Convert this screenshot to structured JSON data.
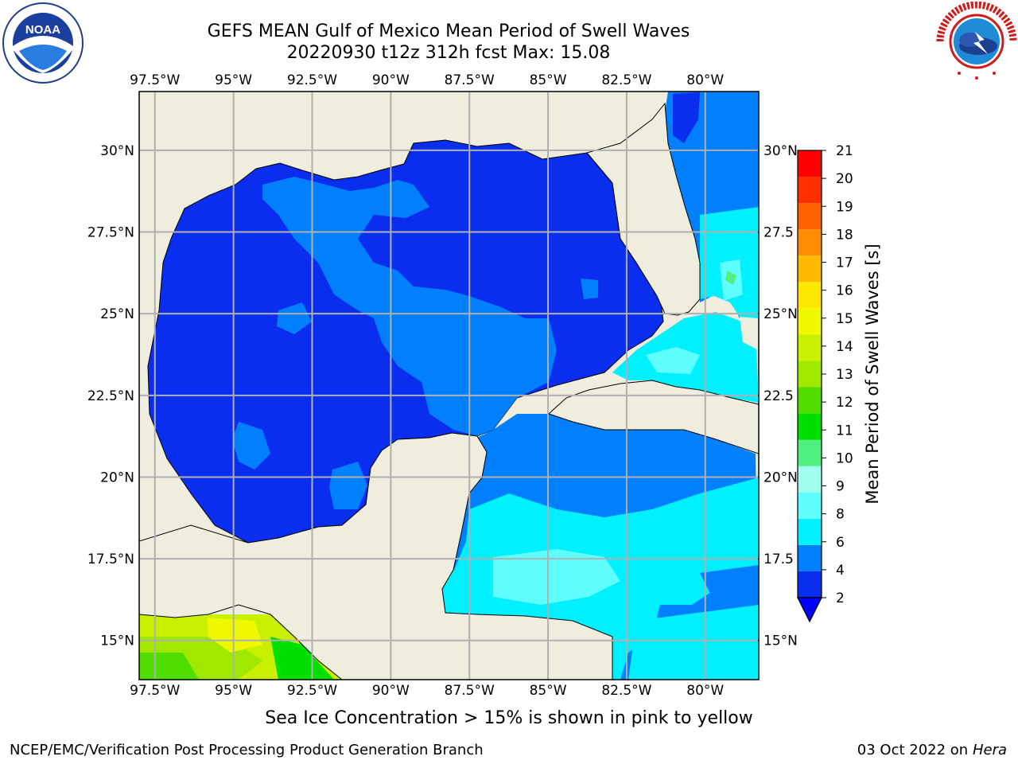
{
  "title": {
    "line1": "GEFS MEAN Gulf of Mexico Mean Period of Swell Waves",
    "line2": "20220930 t12z 312h fcst   Max: 15.08"
  },
  "logos": {
    "left": {
      "icon": "noaa-logo-icon",
      "text": "NOAA"
    },
    "right": {
      "icon": "nws-logo-icon",
      "text": "NATIONAL WEATHER SERVICE"
    }
  },
  "map": {
    "lon_labels": [
      "97.5°W",
      "95°W",
      "92.5°W",
      "90°W",
      "87.5°W",
      "85°W",
      "82.5°W",
      "80°W"
    ],
    "lat_labels_left": [
      "30°N",
      "27.5°N",
      "25°N",
      "22.5°N",
      "20°N",
      "17.5°N",
      "15°N"
    ],
    "lat_labels_right": [
      "30°N",
      "27.5",
      "25°N",
      "22.5",
      "20°N",
      "17.5",
      "15°N"
    ],
    "extent": {
      "lon": [
        -98.0,
        -78.3
      ],
      "lat": [
        13.8,
        31.8
      ]
    },
    "land_color": "#efedde",
    "grid_color": "#b0b0b0"
  },
  "colorbar": {
    "label": "Mean Period of Swell Waves [s]",
    "ticks": [
      "2",
      "4",
      "6",
      "8",
      "9",
      "10",
      "11",
      "12",
      "13",
      "14",
      "15",
      "16",
      "17",
      "18",
      "19",
      "20",
      "21"
    ],
    "colors": [
      "#0a2ef0",
      "#0080ff",
      "#00f0ff",
      "#60ffff",
      "#a0fff0",
      "#50f080",
      "#00e000",
      "#50dd00",
      "#a0e800",
      "#c8f000",
      "#f0f800",
      "#ffe800",
      "#ffbb00",
      "#ff8c00",
      "#ff6000",
      "#ff3000",
      "#ff0000"
    ],
    "under_color": "#0000ff"
  },
  "note": "Sea Ice Concentration > 15% is shown in pink to yellow",
  "footer": {
    "left": "NCEP/EMC/Verification Post Processing Product Generation Branch",
    "date": "03 Oct 2022 on ",
    "host": "Hera"
  }
}
